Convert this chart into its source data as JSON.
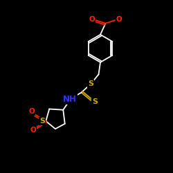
{
  "bg_color": "#000000",
  "bond_color": "#ffffff",
  "atom_colors": {
    "O": "#ff2200",
    "S": "#ccaa00",
    "N": "#3333ff",
    "C": "#ffffff",
    "H": "#ffffff"
  },
  "figsize": [
    2.5,
    2.5
  ],
  "dpi": 100,
  "lw": 1.3,
  "fs": 7.5
}
